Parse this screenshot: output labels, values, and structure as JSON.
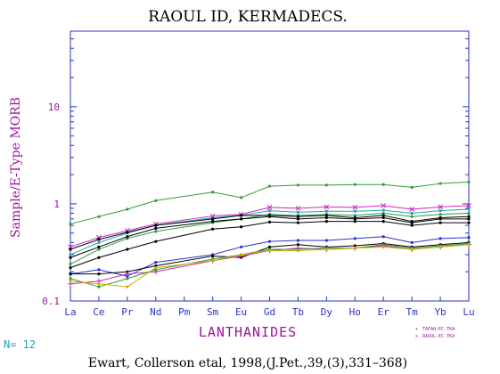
{
  "chart_data": {
    "type": "line",
    "title": "RAOUL ID, KERMADECS.",
    "ylabel": "Sample/E-Type MORB",
    "xlabel": "LANTHANIDES",
    "yscale": "log",
    "ylim": [
      0.1,
      60
    ],
    "y_ticks": [
      "0.1",
      "1",
      "10"
    ],
    "categories": [
      "La",
      "Ce",
      "Pr",
      "Nd",
      "Pm",
      "Sm",
      "Eu",
      "Gd",
      "Tb",
      "Dy",
      "Ho",
      "Er",
      "Tm",
      "Yb",
      "Lu"
    ],
    "count_label": "N= 12",
    "credit": "Ewart, Collerson etal, 1998,(J.Pet.,39,(3),331–368)",
    "legend": [
      {
        "marker": "+",
        "label": "TAFAH-EC.TKA",
        "color": "#cf24c4"
      },
      {
        "marker": "x",
        "label": "RAOUL-EC.TKA",
        "color": "#cf24c4"
      }
    ],
    "series": [
      {
        "color": "#2f9e35",
        "marker": "dot",
        "values": [
          0.62,
          0.74,
          0.88,
          1.08,
          null,
          1.32,
          1.16,
          1.52,
          1.56,
          1.56,
          1.58,
          1.58,
          1.48,
          1.62,
          1.68
        ]
      },
      {
        "color": "#cf24c4",
        "marker": "x",
        "values": [
          0.36,
          0.45,
          0.53,
          0.62,
          null,
          0.75,
          0.78,
          0.92,
          0.9,
          0.93,
          0.92,
          0.96,
          0.88,
          0.93,
          0.96
        ]
      },
      {
        "color": "#1fa6b3",
        "marker": "dot",
        "values": [
          0.3,
          0.4,
          0.5,
          0.6,
          null,
          0.72,
          0.76,
          0.85,
          0.82,
          0.84,
          0.84,
          0.86,
          0.8,
          0.85,
          0.88
        ]
      },
      {
        "color": "#2a9c44",
        "marker": "dot",
        "values": [
          0.24,
          0.34,
          0.44,
          0.52,
          null,
          0.64,
          0.7,
          0.78,
          0.76,
          0.78,
          0.76,
          0.8,
          0.74,
          0.78,
          0.8
        ]
      },
      {
        "color": "#000000",
        "marker": "dot",
        "values": [
          0.34,
          0.43,
          0.51,
          0.6,
          null,
          0.7,
          0.76,
          0.76,
          0.74,
          0.76,
          0.72,
          0.76,
          0.66,
          0.72,
          0.74
        ]
      },
      {
        "color": "#000000",
        "marker": "dot",
        "values": [
          0.28,
          0.36,
          0.46,
          0.56,
          null,
          0.66,
          0.7,
          0.74,
          0.7,
          0.72,
          0.7,
          0.72,
          0.64,
          0.7,
          0.7
        ]
      },
      {
        "color": "#000000",
        "marker": "dot",
        "values": [
          0.22,
          0.28,
          0.34,
          0.41,
          null,
          0.55,
          0.58,
          0.65,
          0.64,
          0.66,
          0.66,
          0.66,
          0.6,
          0.64,
          0.64
        ]
      },
      {
        "color": "#2a32c9",
        "marker": "dot",
        "values": [
          0.19,
          0.21,
          0.18,
          0.25,
          null,
          0.3,
          0.36,
          0.41,
          0.42,
          0.42,
          0.44,
          0.46,
          0.4,
          0.44,
          0.45
        ]
      },
      {
        "color": "#000000",
        "marker": "dot",
        "values": [
          0.19,
          0.19,
          0.2,
          0.23,
          null,
          0.29,
          0.28,
          0.36,
          0.38,
          0.36,
          0.37,
          0.39,
          0.36,
          0.38,
          0.4
        ]
      },
      {
        "color": "#cf24c4",
        "marker": "plus",
        "values": [
          0.15,
          0.16,
          0.19,
          0.2,
          null,
          0.26,
          0.29,
          0.33,
          0.35,
          0.34,
          0.35,
          0.37,
          0.34,
          0.36,
          0.38
        ]
      },
      {
        "color": "#2f9e35",
        "marker": "dot",
        "values": [
          0.17,
          0.14,
          0.17,
          0.21,
          null,
          0.27,
          0.3,
          0.34,
          0.34,
          0.35,
          0.35,
          0.38,
          0.35,
          0.37,
          0.39
        ]
      },
      {
        "color": "#c8b000",
        "marker": "dot",
        "values": [
          0.16,
          0.15,
          0.14,
          0.22,
          null,
          0.26,
          0.3,
          0.33,
          0.33,
          0.34,
          0.35,
          0.36,
          0.34,
          0.36,
          0.38
        ]
      }
    ]
  }
}
